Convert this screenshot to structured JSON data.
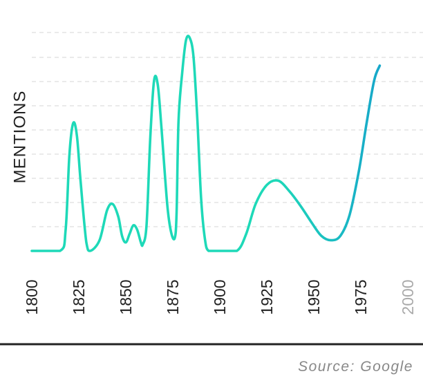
{
  "chart_data": {
    "type": "line",
    "title": "",
    "xlabel": "",
    "ylabel": "MENTIONS",
    "grid": true,
    "xlim": [
      1800,
      2008
    ],
    "ylim": [
      0,
      100
    ],
    "x_ticks": [
      {
        "label": "1800",
        "value": 1800,
        "muted": false
      },
      {
        "label": "1825",
        "value": 1825,
        "muted": false
      },
      {
        "label": "1850",
        "value": 1850,
        "muted": false
      },
      {
        "label": "1875",
        "value": 1875,
        "muted": false
      },
      {
        "label": "1900",
        "value": 1900,
        "muted": false
      },
      {
        "label": "1925",
        "value": 1925,
        "muted": false
      },
      {
        "label": "1950",
        "value": 1950,
        "muted": false
      },
      {
        "label": "1975",
        "value": 1975,
        "muted": false
      },
      {
        "label": "2000",
        "value": 2000,
        "muted": true
      }
    ],
    "series": [
      {
        "color_start": "#1ed9b8",
        "color_end": "#1493d1",
        "points": [
          [
            1800,
            0
          ],
          [
            1815,
            0
          ],
          [
            1818,
            10
          ],
          [
            1820,
            45
          ],
          [
            1822,
            60
          ],
          [
            1824,
            54
          ],
          [
            1826,
            32
          ],
          [
            1829,
            4
          ],
          [
            1831,
            0
          ],
          [
            1836,
            5
          ],
          [
            1840,
            19
          ],
          [
            1843,
            22
          ],
          [
            1846,
            16
          ],
          [
            1848,
            7
          ],
          [
            1850,
            4
          ],
          [
            1852,
            8
          ],
          [
            1854,
            12
          ],
          [
            1856,
            10
          ],
          [
            1858,
            4
          ],
          [
            1859,
            3
          ],
          [
            1861,
            12
          ],
          [
            1863,
            53
          ],
          [
            1865,
            80
          ],
          [
            1867,
            78
          ],
          [
            1869,
            57
          ],
          [
            1872,
            22
          ],
          [
            1874,
            9
          ],
          [
            1876,
            6
          ],
          [
            1877,
            18
          ],
          [
            1878,
            61
          ],
          [
            1880,
            84
          ],
          [
            1882,
            99
          ],
          [
            1884,
            100
          ],
          [
            1886,
            91
          ],
          [
            1888,
            62
          ],
          [
            1890,
            25
          ],
          [
            1892,
            6
          ],
          [
            1894,
            0
          ],
          [
            1900,
            0
          ],
          [
            1909,
            0
          ],
          [
            1914,
            8
          ],
          [
            1919,
            22
          ],
          [
            1925,
            31
          ],
          [
            1931,
            33
          ],
          [
            1937,
            28
          ],
          [
            1943,
            21
          ],
          [
            1949,
            13
          ],
          [
            1954,
            7
          ],
          [
            1959,
            5
          ],
          [
            1964,
            7
          ],
          [
            1969,
            17
          ],
          [
            1974,
            38
          ],
          [
            1978,
            60
          ],
          [
            1982,
            80
          ],
          [
            1985,
            87
          ]
        ]
      }
    ],
    "source": "Source: Google"
  },
  "colors": {
    "grid": "#dddddd",
    "axis_line": "#222222",
    "baseline_rule": "#222222"
  }
}
